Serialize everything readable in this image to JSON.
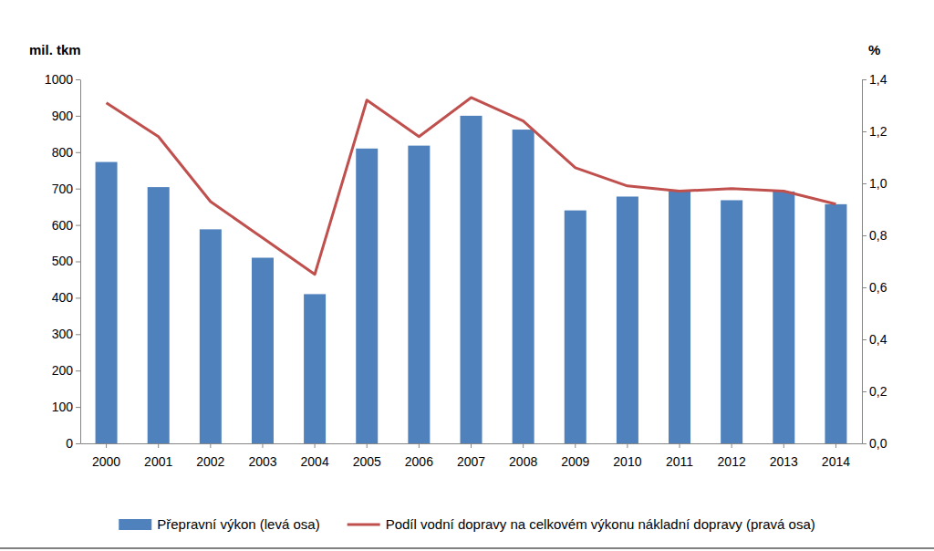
{
  "chart_data": {
    "type": "bar",
    "y_label": "mil. tkm",
    "y2_label": "%",
    "categories": [
      "2000",
      "2001",
      "2002",
      "2003",
      "2004",
      "2005",
      "2006",
      "2007",
      "2008",
      "2009",
      "2010",
      "2011",
      "2012",
      "2013",
      "2014"
    ],
    "series": [
      {
        "name": "Přepravní výkon (levá osa)",
        "type": "bar",
        "color": "#4f81bd",
        "values": [
          773,
          704,
          588,
          510,
          410,
          810,
          818,
          900,
          862,
          640,
          678,
          693,
          668,
          692,
          657
        ]
      },
      {
        "name": "Podíl vodní dopravy na celkovém výkonu nákladní dopravy (pravá osa)",
        "type": "line",
        "axis": "y2",
        "color": "#c0504d",
        "values": [
          1.31,
          1.18,
          0.93,
          0.79,
          0.65,
          1.32,
          1.18,
          1.33,
          1.24,
          1.06,
          0.99,
          0.97,
          0.98,
          0.97,
          0.92
        ]
      }
    ],
    "ylim": [
      0,
      1000
    ],
    "yticks": [
      0,
      100,
      200,
      300,
      400,
      500,
      600,
      700,
      800,
      900,
      1000
    ],
    "y2lim": [
      0,
      1.4
    ],
    "y2ticks": [
      {
        "value": 0,
        "label": "0,0"
      },
      {
        "value": 0.2,
        "label": "0,2"
      },
      {
        "value": 0.4,
        "label": "0,4"
      },
      {
        "value": 0.6,
        "label": "0,6"
      },
      {
        "value": 0.8,
        "label": "0,8"
      },
      {
        "value": 1,
        "label": "1,0"
      },
      {
        "value": 1.2,
        "label": "1,2"
      },
      {
        "value": 1.4,
        "label": "1,4"
      }
    ],
    "grid": false,
    "legend": "bottom"
  }
}
